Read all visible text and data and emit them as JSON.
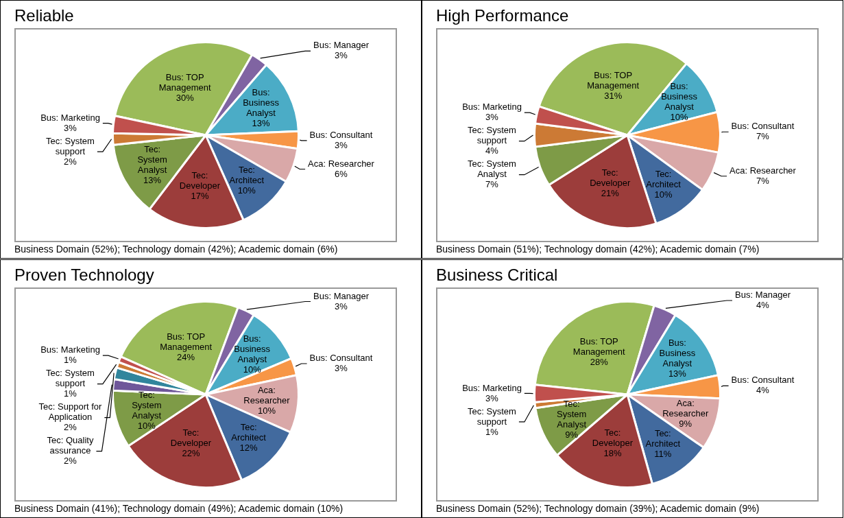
{
  "chart_data": [
    {
      "type": "pie",
      "title": "Reliable",
      "categories": [
        "Bus: TOP Management",
        "Bus: Manager",
        "Bus: Business Analyst",
        "Bus: Consultant",
        "Aca: Researcher",
        "Tec: Architect",
        "Tec: Developer",
        "Tec: System Analyst",
        "Tec: System support",
        "Bus: Marketing"
      ],
      "values": [
        30,
        3,
        13,
        3,
        6,
        10,
        17,
        13,
        2,
        3
      ],
      "value_labels": [
        "30%",
        "3%",
        "13%",
        "3%",
        "6%",
        "10%",
        "17%",
        "13%",
        "2%",
        "3%"
      ],
      "colors": [
        "#9bbb59",
        "#8064a2",
        "#4bacc6",
        "#f79646",
        "#d9a8a8",
        "#426a9e",
        "#9c3d3b",
        "#7e9b47",
        "#cc7a35",
        "#c0504d"
      ],
      "annotations": [
        "Business Domain (52%); Technology domain (42%); Academic domain (6%)"
      ]
    },
    {
      "type": "pie",
      "title": "High Performance",
      "categories": [
        "Bus: TOP Management",
        "Bus: Business Analyst",
        "Bus: Consultant",
        "Aca: Researcher",
        "Tec: Architect",
        "Tec: Developer",
        "Tec: System Analyst",
        "Tec: System support",
        "Bus: Marketing"
      ],
      "values": [
        31,
        10,
        7,
        7,
        10,
        21,
        7,
        4,
        3
      ],
      "value_labels": [
        "31%",
        "10%",
        "7%",
        "7%",
        "10%",
        "21%",
        "7%",
        "4%",
        "3%"
      ],
      "colors": [
        "#9bbb59",
        "#4bacc6",
        "#f79646",
        "#d9a8a8",
        "#426a9e",
        "#9c3d3b",
        "#7e9b47",
        "#cc7a35",
        "#c0504d"
      ],
      "annotations": [
        "Business Domain (51%); Technology domain (42%); Academic domain (7%)"
      ]
    },
    {
      "type": "pie",
      "title": "Proven Technology",
      "categories": [
        "Bus: TOP Management",
        "Bus: Manager",
        "Bus: Business Analyst",
        "Bus: Consultant",
        "Aca: Researcher",
        "Tec: Architect",
        "Tec: Developer",
        "Tec: System Analyst",
        "Tec: Quality assurance",
        "Tec: Support for Application",
        "Tec: System support",
        "Bus: Marketing"
      ],
      "values": [
        24,
        3,
        10,
        3,
        10,
        12,
        22,
        10,
        2,
        2,
        1,
        1
      ],
      "value_labels": [
        "24%",
        "3%",
        "10%",
        "3%",
        "10%",
        "12%",
        "22%",
        "10%",
        "2%",
        "2%",
        "1%",
        "1%"
      ],
      "colors": [
        "#9bbb59",
        "#8064a2",
        "#4bacc6",
        "#f79646",
        "#d9a8a8",
        "#426a9e",
        "#9c3d3b",
        "#7e9b47",
        "#6f579a",
        "#31859c",
        "#cc7a35",
        "#c0504d"
      ],
      "annotations": [
        "Business Domain (41%); Technology domain (49%); Academic domain (10%)"
      ]
    },
    {
      "type": "pie",
      "title": "Business Critical",
      "categories": [
        "Bus: TOP Management",
        "Bus: Manager",
        "Bus: Business Analyst",
        "Bus: Consultant",
        "Aca: Researcher",
        "Tec: Architect",
        "Tec: Developer",
        "Tec: System Analyst",
        "Tec: System support",
        "Bus: Marketing"
      ],
      "values": [
        28,
        4,
        13,
        4,
        9,
        11,
        18,
        9,
        1,
        3
      ],
      "value_labels": [
        "28%",
        "4%",
        "13%",
        "4%",
        "9%",
        "11%",
        "18%",
        "9%",
        "1%",
        "3%"
      ],
      "colors": [
        "#9bbb59",
        "#8064a2",
        "#4bacc6",
        "#f79646",
        "#d9a8a8",
        "#426a9e",
        "#9c3d3b",
        "#7e9b47",
        "#cc7a35",
        "#c0504d"
      ],
      "annotations": [
        "Business Domain (52%); Technology domain (39%); Academic domain (9%)"
      ]
    }
  ]
}
